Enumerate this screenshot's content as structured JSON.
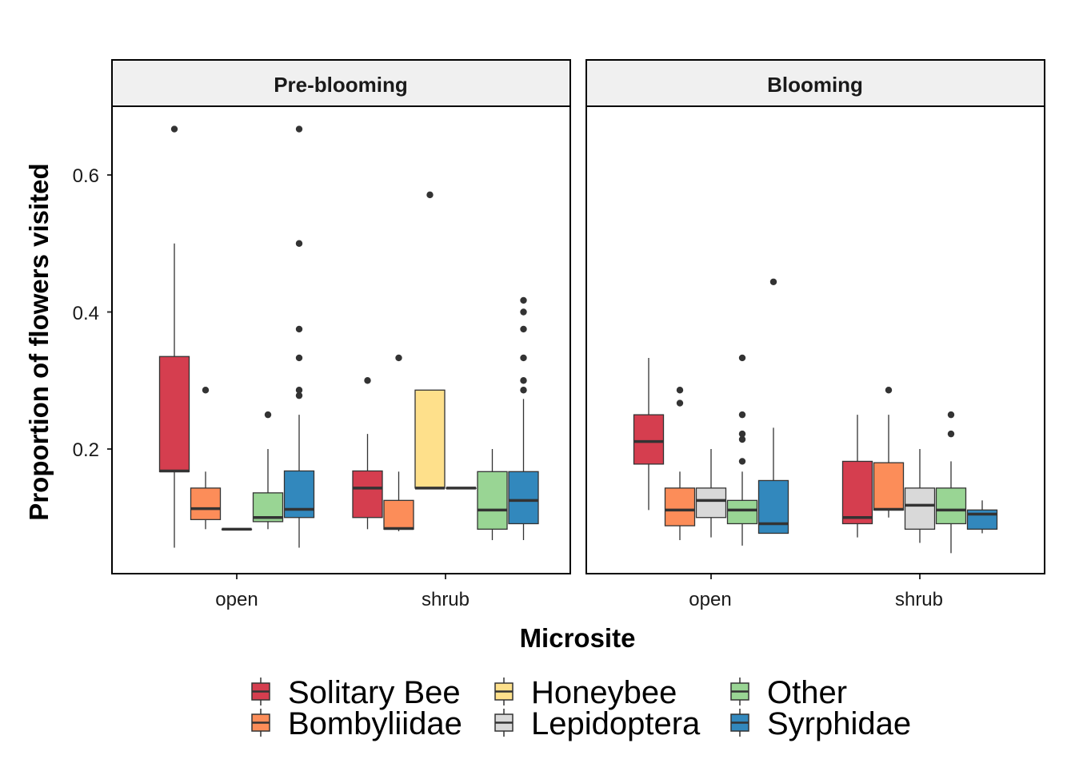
{
  "chart_data": {
    "type": "boxplot",
    "xlabel": "Microsite",
    "ylabel": "Proportion of flowers visited",
    "ylim": [
      0.0,
      0.7
    ],
    "y_ticks": [
      0.2,
      0.4,
      0.6
    ],
    "y_tick_labels": [
      "0.2",
      "0.4",
      "0.6"
    ],
    "categories": [
      "open",
      "shrub"
    ],
    "legend_position": "bottom",
    "series": [
      {
        "name": "Solitary Bee",
        "color": "#D53E4F"
      },
      {
        "name": "Honeybee",
        "color": "#FEE08B"
      },
      {
        "name": "Other",
        "color": "#99D594"
      },
      {
        "name": "Bombyliidae",
        "color": "#FC8D59"
      },
      {
        "name": "Lepidoptera",
        "color": "#D9D9D9"
      },
      {
        "name": "Syrphidae",
        "color": "#3288BD"
      }
    ],
    "panels": [
      {
        "title": "Pre-blooming",
        "groups": [
          {
            "category": "open",
            "boxes": [
              {
                "series": "Solitary Bee",
                "min": 0.056,
                "q1": 0.167,
                "median": 0.168,
                "q3": 0.335,
                "max": 0.5,
                "outliers": [
                  0.667
                ]
              },
              {
                "series": "Bombyliidae",
                "min": 0.083,
                "q1": 0.097,
                "median": 0.113,
                "q3": 0.143,
                "max": 0.167,
                "outliers": [
                  0.286
                ]
              },
              {
                "series": "Lepidoptera",
                "min": 0.083,
                "q1": 0.083,
                "median": 0.083,
                "q3": 0.083,
                "max": 0.083,
                "outliers": []
              },
              {
                "series": "Other",
                "min": 0.083,
                "q1": 0.094,
                "median": 0.1,
                "q3": 0.136,
                "max": 0.2,
                "outliers": [
                  0.25
                ]
              },
              {
                "series": "Syrphidae",
                "min": 0.056,
                "q1": 0.1,
                "median": 0.112,
                "q3": 0.168,
                "max": 0.25,
                "outliers": [
                  0.278,
                  0.286,
                  0.333,
                  0.375,
                  0.5,
                  0.667
                ]
              }
            ]
          },
          {
            "category": "shrub",
            "boxes": [
              {
                "series": "Solitary Bee",
                "min": 0.083,
                "q1": 0.1,
                "median": 0.143,
                "q3": 0.168,
                "max": 0.222,
                "outliers": [
                  0.3
                ]
              },
              {
                "series": "Bombyliidae",
                "min": 0.08,
                "q1": 0.083,
                "median": 0.084,
                "q3": 0.125,
                "max": 0.167,
                "outliers": [
                  0.333
                ]
              },
              {
                "series": "Honeybee",
                "min": 0.143,
                "q1": 0.143,
                "median": 0.143,
                "q3": 0.286,
                "max": 0.286,
                "outliers": [
                  0.571
                ]
              },
              {
                "series": "Lepidoptera",
                "min": 0.143,
                "q1": 0.143,
                "median": 0.143,
                "q3": 0.143,
                "max": 0.143,
                "outliers": []
              },
              {
                "series": "Other",
                "min": 0.067,
                "q1": 0.083,
                "median": 0.111,
                "q3": 0.167,
                "max": 0.2,
                "outliers": []
              },
              {
                "series": "Syrphidae",
                "min": 0.067,
                "q1": 0.091,
                "median": 0.125,
                "q3": 0.167,
                "max": 0.273,
                "outliers": [
                  0.286,
                  0.3,
                  0.333,
                  0.375,
                  0.4,
                  0.417
                ]
              }
            ]
          }
        ]
      },
      {
        "title": "Blooming",
        "groups": [
          {
            "category": "open",
            "boxes": [
              {
                "series": "Solitary Bee",
                "min": 0.111,
                "q1": 0.178,
                "median": 0.211,
                "q3": 0.25,
                "max": 0.333,
                "outliers": []
              },
              {
                "series": "Bombyliidae",
                "min": 0.067,
                "q1": 0.088,
                "median": 0.111,
                "q3": 0.143,
                "max": 0.167,
                "outliers": [
                  0.267,
                  0.286
                ]
              },
              {
                "series": "Lepidoptera",
                "min": 0.071,
                "q1": 0.1,
                "median": 0.125,
                "q3": 0.143,
                "max": 0.2,
                "outliers": []
              },
              {
                "series": "Other",
                "min": 0.059,
                "q1": 0.091,
                "median": 0.111,
                "q3": 0.125,
                "max": 0.167,
                "outliers": [
                  0.182,
                  0.214,
                  0.222,
                  0.25,
                  0.333
                ]
              },
              {
                "series": "Syrphidae",
                "min": 0.077,
                "q1": 0.077,
                "median": 0.091,
                "q3": 0.154,
                "max": 0.231,
                "outliers": [
                  0.444
                ]
              }
            ]
          },
          {
            "category": "shrub",
            "boxes": [
              {
                "series": "Solitary Bee",
                "min": 0.071,
                "q1": 0.091,
                "median": 0.1,
                "q3": 0.182,
                "max": 0.25,
                "outliers": []
              },
              {
                "series": "Bombyliidae",
                "min": 0.1,
                "q1": 0.111,
                "median": 0.112,
                "q3": 0.18,
                "max": 0.25,
                "outliers": [
                  0.286
                ]
              },
              {
                "series": "Lepidoptera",
                "min": 0.063,
                "q1": 0.083,
                "median": 0.118,
                "q3": 0.143,
                "max": 0.2,
                "outliers": []
              },
              {
                "series": "Other",
                "min": 0.048,
                "q1": 0.091,
                "median": 0.111,
                "q3": 0.143,
                "max": 0.182,
                "outliers": [
                  0.222,
                  0.25
                ]
              },
              {
                "series": "Syrphidae",
                "min": 0.077,
                "q1": 0.083,
                "median": 0.105,
                "q3": 0.111,
                "max": 0.125,
                "outliers": []
              }
            ]
          }
        ]
      }
    ]
  }
}
